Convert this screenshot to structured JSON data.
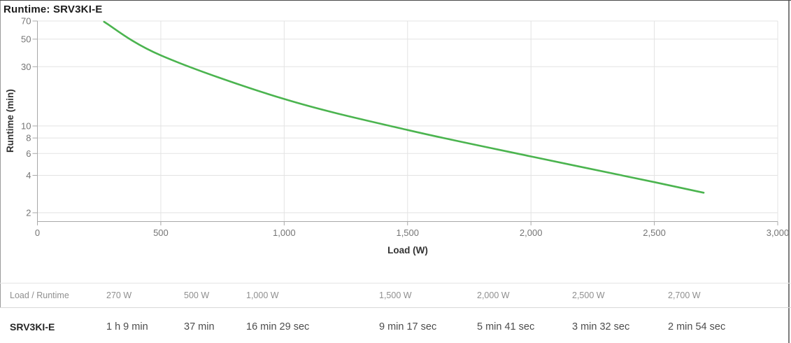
{
  "widget": {
    "title": "Runtime: SRV3KI-E"
  },
  "chart_data": {
    "type": "line",
    "title": "Runtime: SRV3KI-E",
    "xlabel": "Load (W)",
    "ylabel": "Runtime (min)",
    "x_scale": "linear",
    "y_scale": "log",
    "xlim": [
      0,
      3000
    ],
    "ylim": [
      1.71,
      70
    ],
    "grid": true,
    "legend": "none",
    "x_ticks": [
      {
        "value": 0,
        "label": "0"
      },
      {
        "value": 500,
        "label": "500"
      },
      {
        "value": 1000,
        "label": "1,000"
      },
      {
        "value": 1500,
        "label": "1,500"
      },
      {
        "value": 2000,
        "label": "2,000"
      },
      {
        "value": 2500,
        "label": "2,500"
      },
      {
        "value": 3000,
        "label": "3,000"
      }
    ],
    "y_ticks": [
      {
        "value": 70,
        "label": "70"
      },
      {
        "value": 50,
        "label": "50"
      },
      {
        "value": 30,
        "label": "30"
      },
      {
        "value": 10,
        "label": "10"
      },
      {
        "value": 8,
        "label": "8"
      },
      {
        "value": 6,
        "label": "6"
      },
      {
        "value": 4,
        "label": "4"
      },
      {
        "value": 2,
        "label": "2"
      }
    ],
    "series": [
      {
        "name": "SRV3KI-E",
        "color": "#4bb44f",
        "points": [
          {
            "load_w": 270,
            "runtime_min": 69,
            "runtime_label": "1 h 9 min"
          },
          {
            "load_w": 500,
            "runtime_min": 37,
            "runtime_label": "37 min"
          },
          {
            "load_w": 1000,
            "runtime_min": 16.48,
            "runtime_label": "16 min 29 sec"
          },
          {
            "load_w": 1500,
            "runtime_min": 9.28,
            "runtime_label": "9 min 17 sec"
          },
          {
            "load_w": 2000,
            "runtime_min": 5.68,
            "runtime_label": "5 min 41 sec"
          },
          {
            "load_w": 2500,
            "runtime_min": 3.53,
            "runtime_label": "3 min 32 sec"
          },
          {
            "load_w": 2700,
            "runtime_min": 2.9,
            "runtime_label": "2 min 54 sec"
          }
        ]
      }
    ]
  },
  "table": {
    "corner_label": "Load / Runtime",
    "load_columns": [
      "270 W",
      "500 W",
      "1,000 W",
      "1,500 W",
      "2,000 W",
      "2,500 W",
      "2,700 W"
    ],
    "rows": [
      {
        "label": "SRV3KI-E",
        "values": [
          "1 h 9 min",
          "37 min",
          "16 min 29 sec",
          "9 min 17 sec",
          "5 min 41 sec",
          "3 min 32 sec",
          "2 min 54 sec"
        ]
      }
    ]
  },
  "colors": {
    "curve": "#4bb44f",
    "grid": "#e3e3e3",
    "axis": "#a8a8a8",
    "tick_label": "#757575",
    "axis_title": "#333333",
    "title_text": "#1c1c1c"
  }
}
